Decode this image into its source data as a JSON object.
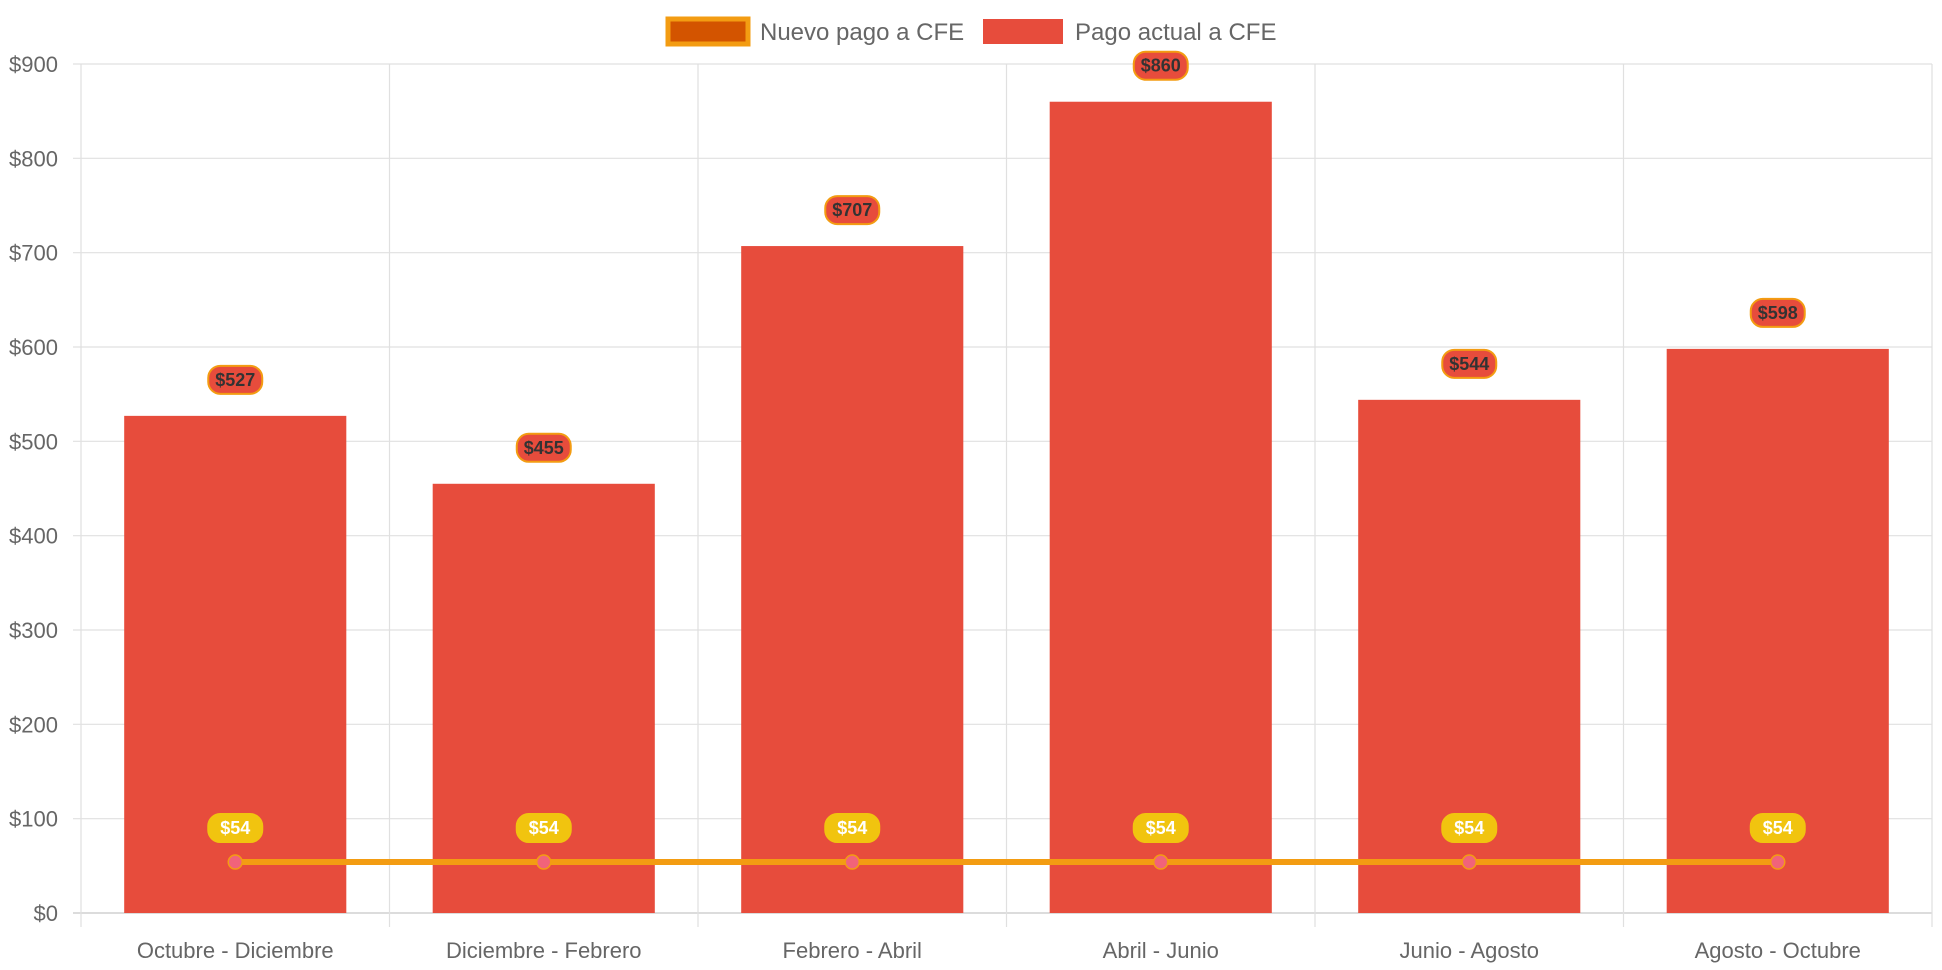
{
  "chart_data": {
    "type": "bar",
    "categories": [
      "Octubre - Diciembre",
      "Diciembre - Febrero",
      "Febrero - Abril",
      "Abril - Junio",
      "Junio - Agosto",
      "Agosto - Octubre"
    ],
    "series": [
      {
        "name": "Nuevo pago a CFE",
        "type": "line",
        "values": [
          54,
          54,
          54,
          54,
          54,
          54
        ],
        "labels": [
          "$54",
          "$54",
          "$54",
          "$54",
          "$54",
          "$54"
        ],
        "color": "#f39c12",
        "point_color": "#f1637a",
        "label_bg": "#f1c40f",
        "label_text_color": "#ffffff",
        "legend_fill": "#d35400",
        "legend_border": "#f39c12"
      },
      {
        "name": "Pago actual a CFE",
        "type": "bar",
        "values": [
          527,
          455,
          707,
          860,
          544,
          598
        ],
        "labels": [
          "$527",
          "$455",
          "$707",
          "$860",
          "$544",
          "$598"
        ],
        "color": "#e74c3c",
        "label_border": "#f39c12",
        "label_text_color": "#333333"
      }
    ],
    "y_ticks": [
      "$0",
      "$100",
      "$200",
      "$300",
      "$400",
      "$500",
      "$600",
      "$700",
      "$800",
      "$900"
    ],
    "ylim": [
      0,
      900
    ],
    "y_step": 100,
    "title": "",
    "xlabel": "",
    "ylabel": "",
    "grid": true,
    "grid_color": "#e0e0e0",
    "legend_position": "top"
  }
}
